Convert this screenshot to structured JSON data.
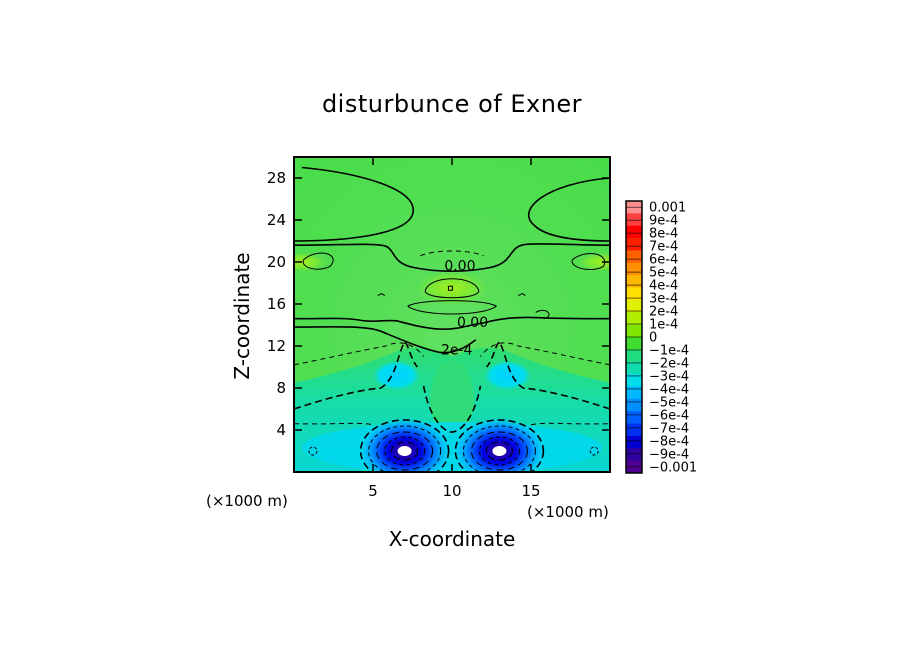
{
  "chart_data": {
    "type": "heatmap",
    "title": "disturbunce of Exner",
    "xlabel": "X-coordinate",
    "ylabel": "Z-coordinate",
    "x_unit": "(×1000 m)",
    "y_unit": "(×1000 m)",
    "xlim": [
      0,
      20
    ],
    "ylim": [
      0,
      30
    ],
    "x_ticks": [
      5,
      10,
      15
    ],
    "y_ticks": [
      4,
      8,
      12,
      16,
      20,
      24,
      28
    ],
    "colorbar": {
      "labels": [
        "0.001",
        "9e-4",
        "8e-4",
        "7e-4",
        "6e-4",
        "5e-4",
        "4e-4",
        "3e-4",
        "2e-4",
        "1e-4",
        "0",
        "−1e-4",
        "−2e-4",
        "−3e-4",
        "−4e-4",
        "−5e-4",
        "−6e-4",
        "−7e-4",
        "−8e-4",
        "−9e-4",
        "−0.001"
      ],
      "colors": [
        "#ff9090",
        "#ff4040",
        "#ff0000",
        "#ff2000",
        "#ff6000",
        "#ff9000",
        "#ffb800",
        "#ffe000",
        "#e0f000",
        "#b0ee00",
        "#80e600",
        "#40dd30",
        "#20dd80",
        "#10dcb0",
        "#00dce8",
        "#00b8ff",
        "#0090ff",
        "#0060ff",
        "#0030f0",
        "#0000d0",
        "#3000a0",
        "#500090"
      ]
    },
    "contour_labels": [
      {
        "text": "0.00",
        "x": 10.5,
        "z": 19.2
      },
      {
        "text": "0.00",
        "x": 11.3,
        "z": 13.8
      },
      {
        "text": "2e-4",
        "x": 10.3,
        "z": 11.2
      }
    ],
    "features": {
      "background_value": "0",
      "negative_cores": [
        {
          "x": 7,
          "z": 1.5,
          "value": "-0.001"
        },
        {
          "x": 13,
          "z": 1.5,
          "value": "-0.001"
        }
      ],
      "mid_lows": [
        {
          "x": 6.5,
          "z": 9.2,
          "value": "-4e-4"
        },
        {
          "x": 13.5,
          "z": 9.2,
          "value": "-4e-4"
        }
      ],
      "positive_centers": [
        {
          "x": 10,
          "z": 17.5,
          "value": "2e-4"
        },
        {
          "x": 0.5,
          "z": 20,
          "value": "1e-4"
        },
        {
          "x": 19.5,
          "z": 20,
          "value": "1e-4"
        }
      ]
    }
  }
}
